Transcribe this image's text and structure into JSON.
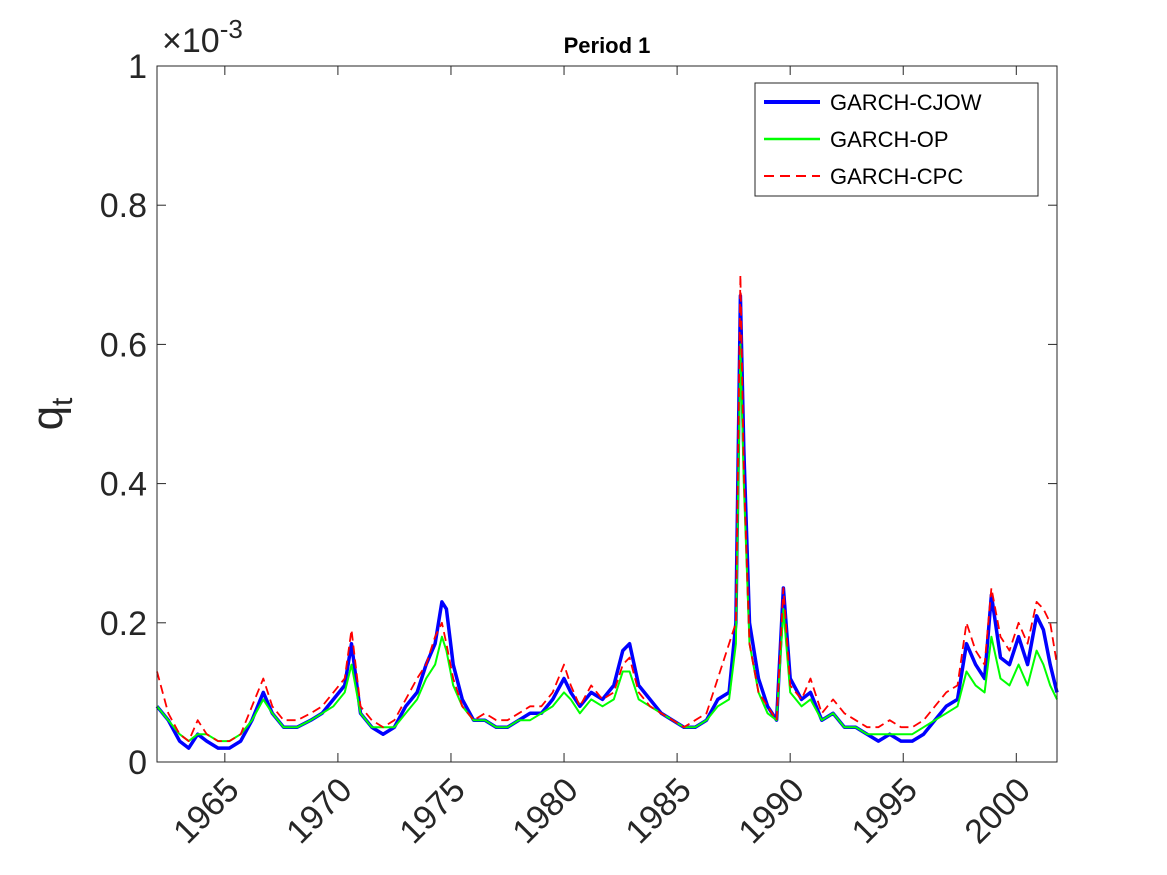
{
  "chart_data": {
    "type": "line",
    "title": "Period 1",
    "xlabel": "",
    "ylabel_main": "q",
    "ylabel_sub": "t",
    "y_exponent_prefix": "×10",
    "y_exponent_power": "-3",
    "xlim": [
      1962.0,
      2001.8
    ],
    "ylim": [
      0,
      1
    ],
    "x_ticks": [
      1965,
      1970,
      1975,
      1980,
      1985,
      1990,
      1995,
      2000
    ],
    "x_tick_labels": [
      "1965",
      "1970",
      "1975",
      "1980",
      "1985",
      "1990",
      "1995",
      "2000"
    ],
    "y_ticks": [
      0,
      0.2,
      0.4,
      0.6,
      0.8,
      1
    ],
    "y_tick_labels": [
      "0",
      "0.2",
      "0.4",
      "0.6",
      "0.8",
      "1"
    ],
    "grid": false,
    "legend_position": "top-right",
    "series": [
      {
        "name": "GARCH-CJOW",
        "color": "#0000ff",
        "style": "solid-thick",
        "x": [
          1962.0,
          1962.5,
          1963.0,
          1963.4,
          1963.8,
          1964.2,
          1964.7,
          1965.2,
          1965.7,
          1966.2,
          1966.7,
          1967.1,
          1967.6,
          1968.2,
          1968.8,
          1969.3,
          1969.8,
          1970.3,
          1970.6,
          1971.0,
          1971.5,
          1972.0,
          1972.5,
          1973.0,
          1973.5,
          1973.9,
          1974.3,
          1974.6,
          1974.8,
          1975.1,
          1975.5,
          1976.0,
          1976.5,
          1977.0,
          1977.5,
          1978.0,
          1978.5,
          1979.0,
          1979.5,
          1980.0,
          1980.3,
          1980.7,
          1981.2,
          1981.7,
          1982.2,
          1982.6,
          1982.9,
          1983.3,
          1983.8,
          1984.3,
          1984.8,
          1985.3,
          1985.8,
          1986.3,
          1986.8,
          1987.3,
          1987.6,
          1987.8,
          1987.95,
          1988.2,
          1988.6,
          1989.0,
          1989.4,
          1989.7,
          1990.0,
          1990.5,
          1990.9,
          1991.4,
          1991.9,
          1992.4,
          1992.9,
          1993.4,
          1993.9,
          1994.4,
          1994.9,
          1995.4,
          1995.9,
          1996.4,
          1996.9,
          1997.4,
          1997.8,
          1998.2,
          1998.6,
          1998.9,
          1999.3,
          1999.7,
          2000.1,
          2000.5,
          2000.9,
          2001.2,
          2001.5,
          2001.8
        ],
        "y": [
          0.08,
          0.06,
          0.03,
          0.02,
          0.04,
          0.03,
          0.02,
          0.02,
          0.03,
          0.06,
          0.1,
          0.07,
          0.05,
          0.05,
          0.06,
          0.07,
          0.09,
          0.11,
          0.17,
          0.07,
          0.05,
          0.04,
          0.05,
          0.08,
          0.1,
          0.14,
          0.17,
          0.23,
          0.22,
          0.14,
          0.09,
          0.06,
          0.06,
          0.05,
          0.05,
          0.06,
          0.07,
          0.07,
          0.09,
          0.12,
          0.1,
          0.08,
          0.1,
          0.09,
          0.11,
          0.16,
          0.17,
          0.11,
          0.09,
          0.07,
          0.06,
          0.05,
          0.05,
          0.06,
          0.09,
          0.1,
          0.2,
          0.67,
          0.45,
          0.2,
          0.12,
          0.08,
          0.06,
          0.25,
          0.12,
          0.09,
          0.1,
          0.06,
          0.07,
          0.05,
          0.05,
          0.04,
          0.03,
          0.04,
          0.03,
          0.03,
          0.04,
          0.06,
          0.08,
          0.09,
          0.17,
          0.14,
          0.12,
          0.24,
          0.15,
          0.14,
          0.18,
          0.14,
          0.21,
          0.19,
          0.14,
          0.1
        ]
      },
      {
        "name": "GARCH-OP",
        "color": "#00ff00",
        "style": "solid",
        "x": [
          1962.0,
          1962.5,
          1963.0,
          1963.4,
          1963.8,
          1964.2,
          1964.7,
          1965.2,
          1965.7,
          1966.2,
          1966.7,
          1967.1,
          1967.6,
          1968.2,
          1968.8,
          1969.3,
          1969.8,
          1970.3,
          1970.6,
          1971.0,
          1971.5,
          1972.0,
          1972.5,
          1973.0,
          1973.5,
          1973.9,
          1974.3,
          1974.6,
          1974.8,
          1975.1,
          1975.5,
          1976.0,
          1976.5,
          1977.0,
          1977.5,
          1978.0,
          1978.5,
          1979.0,
          1979.5,
          1980.0,
          1980.3,
          1980.7,
          1981.2,
          1981.7,
          1982.2,
          1982.6,
          1982.9,
          1983.3,
          1983.8,
          1984.3,
          1984.8,
          1985.3,
          1985.8,
          1986.3,
          1986.8,
          1987.3,
          1987.6,
          1987.8,
          1987.95,
          1988.2,
          1988.6,
          1989.0,
          1989.4,
          1989.7,
          1990.0,
          1990.5,
          1990.9,
          1991.4,
          1991.9,
          1992.4,
          1992.9,
          1993.4,
          1993.9,
          1994.4,
          1994.9,
          1995.4,
          1995.9,
          1996.4,
          1996.9,
          1997.4,
          1997.8,
          1998.2,
          1998.6,
          1998.9,
          1999.3,
          1999.7,
          2000.1,
          2000.5,
          2000.9,
          2001.2,
          2001.5,
          2001.8
        ],
        "y": [
          0.08,
          0.06,
          0.04,
          0.03,
          0.04,
          0.04,
          0.03,
          0.03,
          0.04,
          0.06,
          0.09,
          0.07,
          0.05,
          0.05,
          0.06,
          0.07,
          0.08,
          0.1,
          0.14,
          0.07,
          0.05,
          0.05,
          0.05,
          0.07,
          0.09,
          0.12,
          0.14,
          0.18,
          0.16,
          0.11,
          0.08,
          0.06,
          0.06,
          0.05,
          0.05,
          0.06,
          0.06,
          0.07,
          0.08,
          0.1,
          0.09,
          0.07,
          0.09,
          0.08,
          0.09,
          0.13,
          0.13,
          0.09,
          0.08,
          0.07,
          0.06,
          0.05,
          0.05,
          0.06,
          0.08,
          0.09,
          0.17,
          0.6,
          0.4,
          0.17,
          0.1,
          0.07,
          0.06,
          0.22,
          0.1,
          0.08,
          0.09,
          0.06,
          0.07,
          0.05,
          0.05,
          0.04,
          0.04,
          0.04,
          0.04,
          0.04,
          0.05,
          0.06,
          0.07,
          0.08,
          0.13,
          0.11,
          0.1,
          0.18,
          0.12,
          0.11,
          0.14,
          0.11,
          0.16,
          0.14,
          0.11,
          0.09
        ]
      },
      {
        "name": "GARCH-CPC",
        "color": "#ff0000",
        "style": "dashed",
        "x": [
          1962.0,
          1962.5,
          1963.0,
          1963.4,
          1963.8,
          1964.2,
          1964.7,
          1965.2,
          1965.7,
          1966.2,
          1966.7,
          1967.1,
          1967.6,
          1968.2,
          1968.8,
          1969.3,
          1969.8,
          1970.3,
          1970.6,
          1971.0,
          1971.5,
          1972.0,
          1972.5,
          1973.0,
          1973.5,
          1973.9,
          1974.3,
          1974.6,
          1974.8,
          1975.1,
          1975.5,
          1976.0,
          1976.5,
          1977.0,
          1977.5,
          1978.0,
          1978.5,
          1979.0,
          1979.5,
          1980.0,
          1980.3,
          1980.7,
          1981.2,
          1981.7,
          1982.2,
          1982.6,
          1982.9,
          1983.3,
          1983.8,
          1984.3,
          1984.8,
          1985.3,
          1985.8,
          1986.3,
          1986.8,
          1987.3,
          1987.6,
          1987.8,
          1987.95,
          1988.2,
          1988.6,
          1989.0,
          1989.4,
          1989.7,
          1990.0,
          1990.5,
          1990.9,
          1991.4,
          1991.9,
          1992.4,
          1992.9,
          1993.4,
          1993.9,
          1994.4,
          1994.9,
          1995.4,
          1995.9,
          1996.4,
          1996.9,
          1997.4,
          1997.8,
          1998.2,
          1998.6,
          1998.9,
          1999.3,
          1999.7,
          2000.1,
          2000.5,
          2000.9,
          2001.2,
          2001.5,
          2001.8
        ],
        "y": [
          0.13,
          0.07,
          0.04,
          0.03,
          0.06,
          0.04,
          0.03,
          0.03,
          0.04,
          0.08,
          0.12,
          0.08,
          0.06,
          0.06,
          0.07,
          0.08,
          0.1,
          0.12,
          0.19,
          0.08,
          0.06,
          0.05,
          0.06,
          0.09,
          0.12,
          0.14,
          0.18,
          0.2,
          0.17,
          0.12,
          0.08,
          0.06,
          0.07,
          0.06,
          0.06,
          0.07,
          0.08,
          0.08,
          0.1,
          0.14,
          0.11,
          0.08,
          0.11,
          0.09,
          0.1,
          0.14,
          0.15,
          0.1,
          0.08,
          0.07,
          0.06,
          0.05,
          0.06,
          0.07,
          0.12,
          0.17,
          0.2,
          0.7,
          0.42,
          0.17,
          0.1,
          0.08,
          0.06,
          0.25,
          0.11,
          0.09,
          0.12,
          0.07,
          0.09,
          0.07,
          0.06,
          0.05,
          0.05,
          0.06,
          0.05,
          0.05,
          0.06,
          0.08,
          0.1,
          0.11,
          0.2,
          0.16,
          0.14,
          0.25,
          0.18,
          0.16,
          0.2,
          0.17,
          0.23,
          0.22,
          0.2,
          0.14
        ]
      }
    ]
  }
}
